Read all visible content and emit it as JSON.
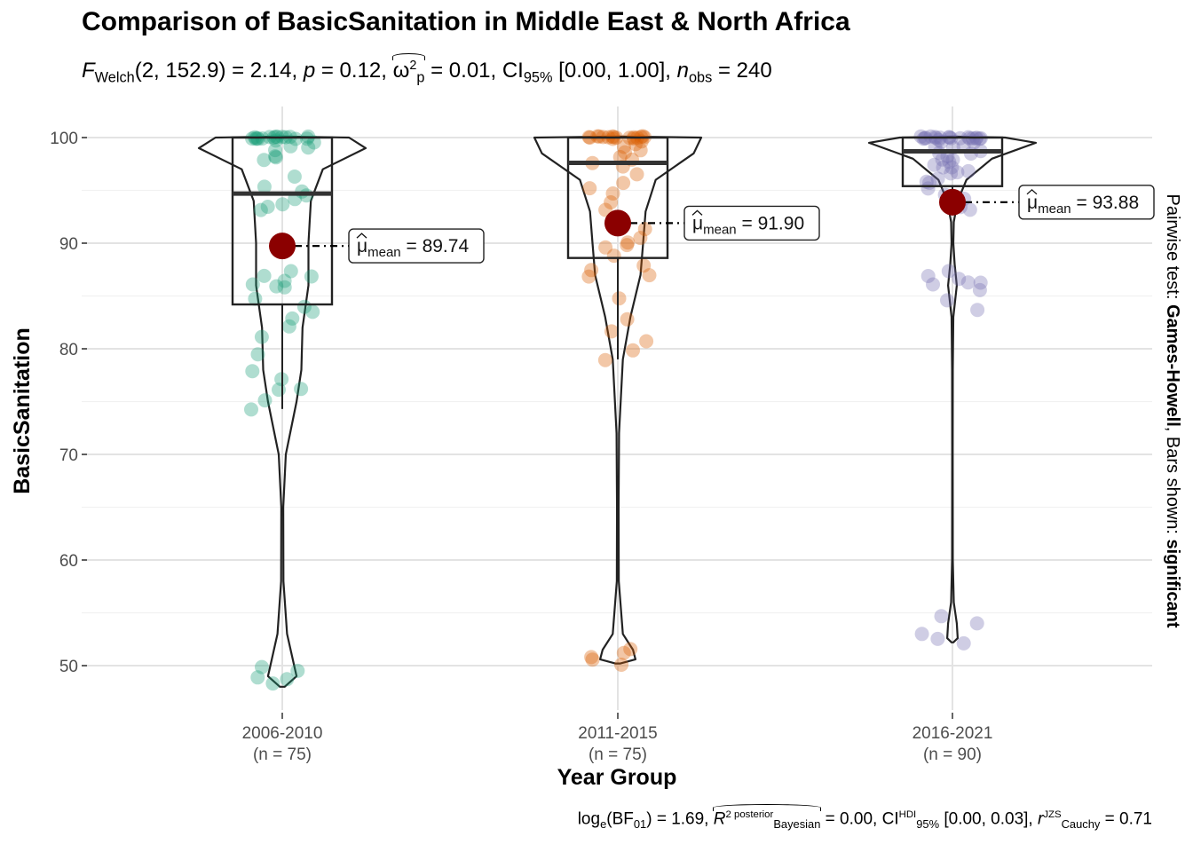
{
  "title": "Comparison of BasicSanitation in Middle East & North Africa",
  "subtitle": {
    "stat_symbol": "F",
    "stat_sub": "Welch",
    "df": "(2, 152.9)",
    "stat_value": " = 2.14, ",
    "p_symbol": "p",
    "p_value": " = 0.12, ",
    "effect_symbol": "ω",
    "effect_sup": "2",
    "effect_sub": "p",
    "effect_value": " = 0.01, CI",
    "ci_sub": "95%",
    "ci_value": " [0.00, 1.00], ",
    "n_symbol": "n",
    "n_sub": "obs",
    "n_value": " = 240"
  },
  "caption": {
    "bf_prefix": "log",
    "bf_sub_e": "e",
    "bf_paren_open": "(BF",
    "bf_sub": "01",
    "bf_value": ") = 1.69, ",
    "r2_symbol": "R",
    "r2_sup": "2 posterior",
    "r2_sub": "Bayesian",
    "r2_value": " = 0.00, CI",
    "hdi_sup": "HDI",
    "hdi_sub": "95%",
    "hdi_value": " [0.00, 0.03], ",
    "r_symbol": "r",
    "r_sup": "JZS",
    "r_sub": "Cauchy",
    "r_value": " = 0.71"
  },
  "side_label": {
    "prefix": "Pairwise test: ",
    "test": "Games-Howell",
    "middle": ", Bars shown: ",
    "shown": "significant"
  },
  "colors": {
    "groups": [
      "#1b9e77",
      "#d95f02",
      "#7570b3"
    ],
    "mean_point": "#8b0000",
    "grid": "#e5e5e5"
  },
  "chart_data": {
    "type": "violin-box-scatter",
    "xlabel": "Year Group",
    "ylabel": "BasicSanitation",
    "ylim": [
      46,
      103
    ],
    "yticks": [
      50,
      60,
      70,
      80,
      90,
      100
    ],
    "groups": [
      {
        "label": "2006-2010",
        "n_label": "(n = 75)",
        "mean": 89.74,
        "mean_label_prefix": "μ",
        "mean_label_sub": "mean",
        "mean_label_value": " = 89.74",
        "box": {
          "q1": 84.2,
          "median": 94.7,
          "q3": 100.0,
          "whisker_low": 74.3,
          "whisker_high": 100.0
        },
        "violin": [
          [
            48.0,
            0.1
          ],
          [
            49,
            0.6
          ],
          [
            50,
            0.5
          ],
          [
            53,
            0.2
          ],
          [
            58,
            0.05
          ],
          [
            65,
            0.04
          ],
          [
            70,
            0.15
          ],
          [
            75,
            0.6
          ],
          [
            78,
            0.8
          ],
          [
            82,
            0.85
          ],
          [
            86,
            1.1
          ],
          [
            90,
            1.1
          ],
          [
            94,
            1.2
          ],
          [
            97,
            1.7
          ],
          [
            99,
            3.5
          ],
          [
            100,
            2.8
          ],
          [
            100.1,
            0.1
          ]
        ],
        "points": [
          100,
          100,
          100,
          100,
          100,
          100,
          100,
          100,
          100,
          100,
          100,
          100,
          100,
          100,
          99.9,
          99.8,
          99.6,
          99.5,
          99.2,
          99.0,
          98.8,
          98.3,
          98.1,
          97.8,
          96.2,
          95.4,
          95.0,
          94.6,
          94.2,
          93.8,
          93.4,
          93.1,
          87.4,
          87.0,
          86.8,
          86.4,
          86.2,
          86.0,
          85.8,
          84.8,
          83.9,
          83.4,
          82.9,
          82.2,
          81.2,
          79.6,
          78.0,
          77.2,
          76.1,
          76.0,
          75.1,
          74.2,
          49.8,
          49.4,
          49.0,
          48.6,
          48.2
        ]
      },
      {
        "label": "2011-2015",
        "n_label": "(n = 75)",
        "mean": 91.9,
        "mean_label_prefix": "μ",
        "mean_label_sub": "mean",
        "mean_label_value": " = 91.90",
        "box": {
          "q1": 88.6,
          "median": 97.6,
          "q3": 100.0,
          "whisker_low": 79.0,
          "whisker_high": 100.0
        },
        "violin": [
          [
            50.2,
            0.1
          ],
          [
            50.6,
            0.7
          ],
          [
            51.5,
            0.6
          ],
          [
            53,
            0.2
          ],
          [
            58,
            0.04
          ],
          [
            65,
            0.03
          ],
          [
            72,
            0.05
          ],
          [
            79,
            0.2
          ],
          [
            83,
            0.5
          ],
          [
            87,
            0.9
          ],
          [
            90,
            1.0
          ],
          [
            93,
            1.1
          ],
          [
            96,
            1.5
          ],
          [
            98.5,
            3.0
          ],
          [
            100,
            3.3
          ],
          [
            100.1,
            0.1
          ]
        ],
        "points": [
          100,
          100,
          100,
          100,
          100,
          100,
          100,
          100,
          100,
          100,
          100,
          100,
          100,
          100,
          100,
          100,
          99.8,
          99.6,
          99.4,
          99.1,
          98.8,
          98.5,
          98.2,
          97.8,
          97.5,
          97.2,
          96.5,
          95.6,
          95.2,
          94.8,
          93.8,
          93.2,
          91.4,
          90.6,
          90.0,
          89.8,
          89.6,
          88.8,
          87.8,
          87.4,
          87.0,
          86.8,
          84.8,
          82.7,
          81.6,
          80.8,
          79.8,
          78.9,
          51.5,
          51.2,
          50.9,
          50.5,
          50.2
        ]
      },
      {
        "label": "2016-2021",
        "n_label": "(n = 90)",
        "mean": 93.88,
        "mean_label_prefix": "μ",
        "mean_label_sub": "mean",
        "mean_label_value": " = 93.88",
        "box": {
          "q1": 95.4,
          "median": 98.7,
          "q3": 100.0,
          "whisker_low": 93.5,
          "whisker_high": 100.0
        },
        "violin": [
          [
            52.2,
            0.1
          ],
          [
            52.6,
            0.6
          ],
          [
            54,
            0.5
          ],
          [
            56,
            0.15
          ],
          [
            60,
            0.04
          ],
          [
            70,
            0.03
          ],
          [
            78,
            0.04
          ],
          [
            83,
            0.1
          ],
          [
            86,
            0.5
          ],
          [
            88,
            0.25
          ],
          [
            90,
            0.1
          ],
          [
            92,
            0.15
          ],
          [
            94,
            0.6
          ],
          [
            96,
            1.6
          ],
          [
            98,
            4.5
          ],
          [
            99.5,
            9.5
          ],
          [
            100,
            6.0
          ],
          [
            100.1,
            0.1
          ]
        ],
        "points": [
          100,
          100,
          100,
          100,
          100,
          100,
          100,
          100,
          100,
          100,
          100,
          100,
          100,
          100,
          100,
          100,
          100,
          100,
          99.9,
          99.8,
          99.6,
          99.5,
          99.3,
          99.2,
          99.0,
          98.8,
          98.6,
          98.5,
          98.2,
          98.0,
          97.8,
          97.6,
          97.5,
          97.3,
          97.1,
          96.8,
          96.6,
          96.5,
          96.2,
          95.9,
          95.6,
          95.2,
          94.6,
          94.2,
          93.5,
          93.2,
          87.4,
          87.0,
          86.6,
          86.4,
          86.2,
          86.0,
          85.6,
          84.5,
          83.6,
          54.6,
          54.1,
          53.1,
          52.6,
          52.2
        ]
      }
    ]
  }
}
